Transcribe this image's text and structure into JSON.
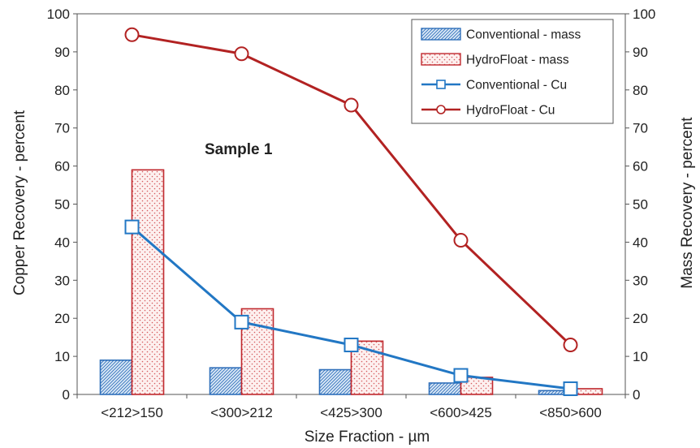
{
  "chart_data": {
    "type": "bar",
    "title": "",
    "annotation": "Sample 1",
    "xlabel": "Size Fraction - µm",
    "ylabel_left": "Copper Recovery - percent",
    "ylabel_right": "Mass Recovery - percent",
    "ylim_left": [
      0,
      100
    ],
    "ylim_right": [
      0,
      100
    ],
    "yticks": [
      0,
      10,
      20,
      30,
      40,
      50,
      60,
      70,
      80,
      90,
      100
    ],
    "categories": [
      "<212>150",
      "<300>212",
      "<425>300",
      "<600>425",
      "<850>600"
    ],
    "legend_position": "top-right",
    "grid": false,
    "series": [
      {
        "name": "Conventional - mass",
        "kind": "bar",
        "axis": "right",
        "color": "#2f6fba",
        "values": [
          9,
          7,
          6.5,
          3,
          1
        ]
      },
      {
        "name": "HydroFloat - mass",
        "kind": "bar",
        "axis": "right",
        "color": "#c0282d",
        "values": [
          59,
          22.5,
          14,
          4.5,
          1.5
        ]
      },
      {
        "name": "Conventional - Cu",
        "kind": "line",
        "axis": "left",
        "color": "#2277c4",
        "marker": "square",
        "values": [
          44,
          19,
          13,
          5,
          1.5
        ]
      },
      {
        "name": "HydroFloat - Cu",
        "kind": "line",
        "axis": "left",
        "color": "#b22222",
        "marker": "circle",
        "values": [
          94.5,
          89.5,
          76,
          40.5,
          13
        ]
      }
    ]
  }
}
